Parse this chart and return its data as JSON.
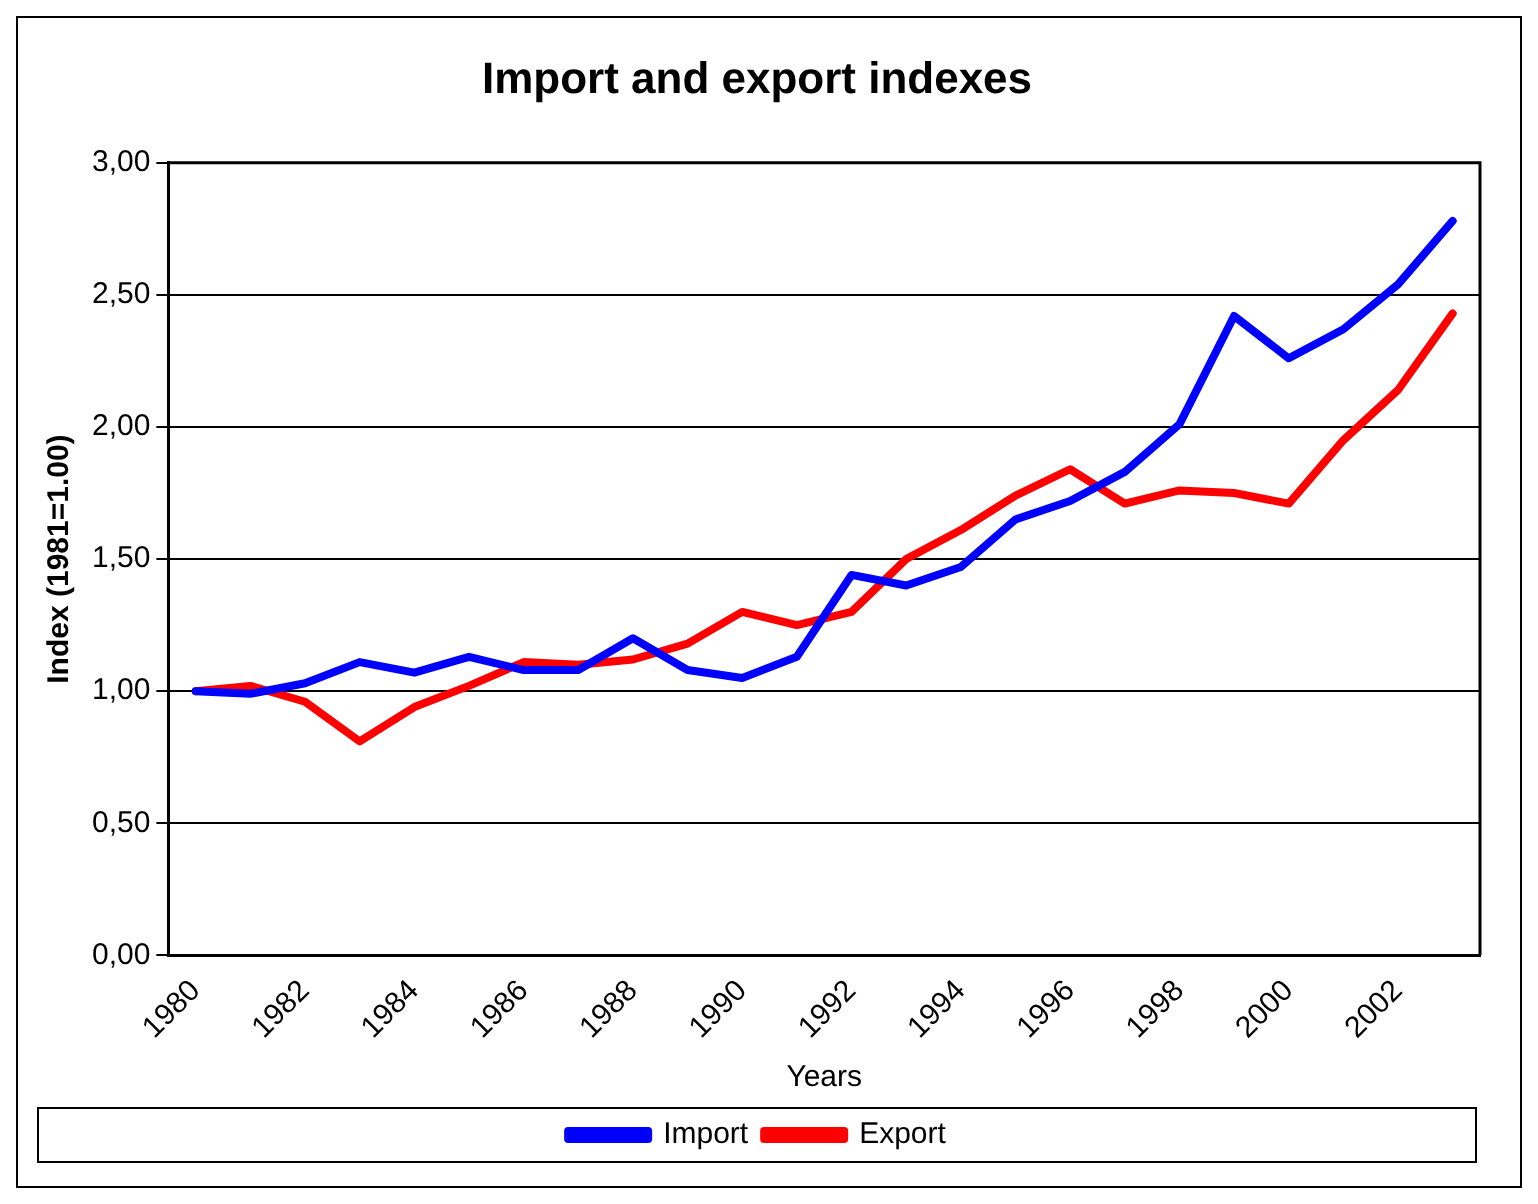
{
  "chart_data": {
    "type": "line",
    "title": "Import and export indexes",
    "xlabel": "Years",
    "ylabel": "Index (1981=1.00)",
    "categories": [
      "1980",
      null,
      "1982",
      null,
      "1984",
      null,
      "1986",
      null,
      "1988",
      null,
      "1990",
      null,
      "1992",
      null,
      "1994",
      null,
      "1996",
      null,
      "1998",
      null,
      "2000",
      null,
      "2002",
      null
    ],
    "series": [
      {
        "name": "Import",
        "color": "#0000ff",
        "values": [
          1.0,
          0.99,
          1.03,
          1.11,
          1.07,
          1.13,
          1.08,
          1.08,
          1.2,
          1.08,
          1.05,
          1.13,
          1.44,
          1.4,
          1.47,
          1.65,
          1.72,
          1.83,
          2.01,
          2.42,
          2.26,
          2.37,
          2.54,
          2.78
        ]
      },
      {
        "name": "Export",
        "color": "#ff0000",
        "values": [
          1.0,
          1.02,
          0.96,
          0.81,
          0.94,
          1.02,
          1.11,
          1.1,
          1.12,
          1.18,
          1.3,
          1.25,
          1.3,
          1.5,
          1.61,
          1.74,
          1.84,
          1.71,
          1.76,
          1.75,
          1.71,
          1.95,
          2.14,
          2.43
        ]
      }
    ],
    "ylim": [
      0,
      3
    ],
    "yticks": [
      {
        "value": 0,
        "label": "0,00"
      },
      {
        "value": 0.5,
        "label": "0,50"
      },
      {
        "value": 1,
        "label": "1,00"
      },
      {
        "value": 1.5,
        "label": "1,50"
      },
      {
        "value": 2,
        "label": "2,00"
      },
      {
        "value": 2.5,
        "label": "2,50"
      },
      {
        "value": 3,
        "label": "3,00"
      }
    ],
    "grid": "y",
    "legend": "bottom",
    "marker": "none",
    "line_style": "solid"
  }
}
